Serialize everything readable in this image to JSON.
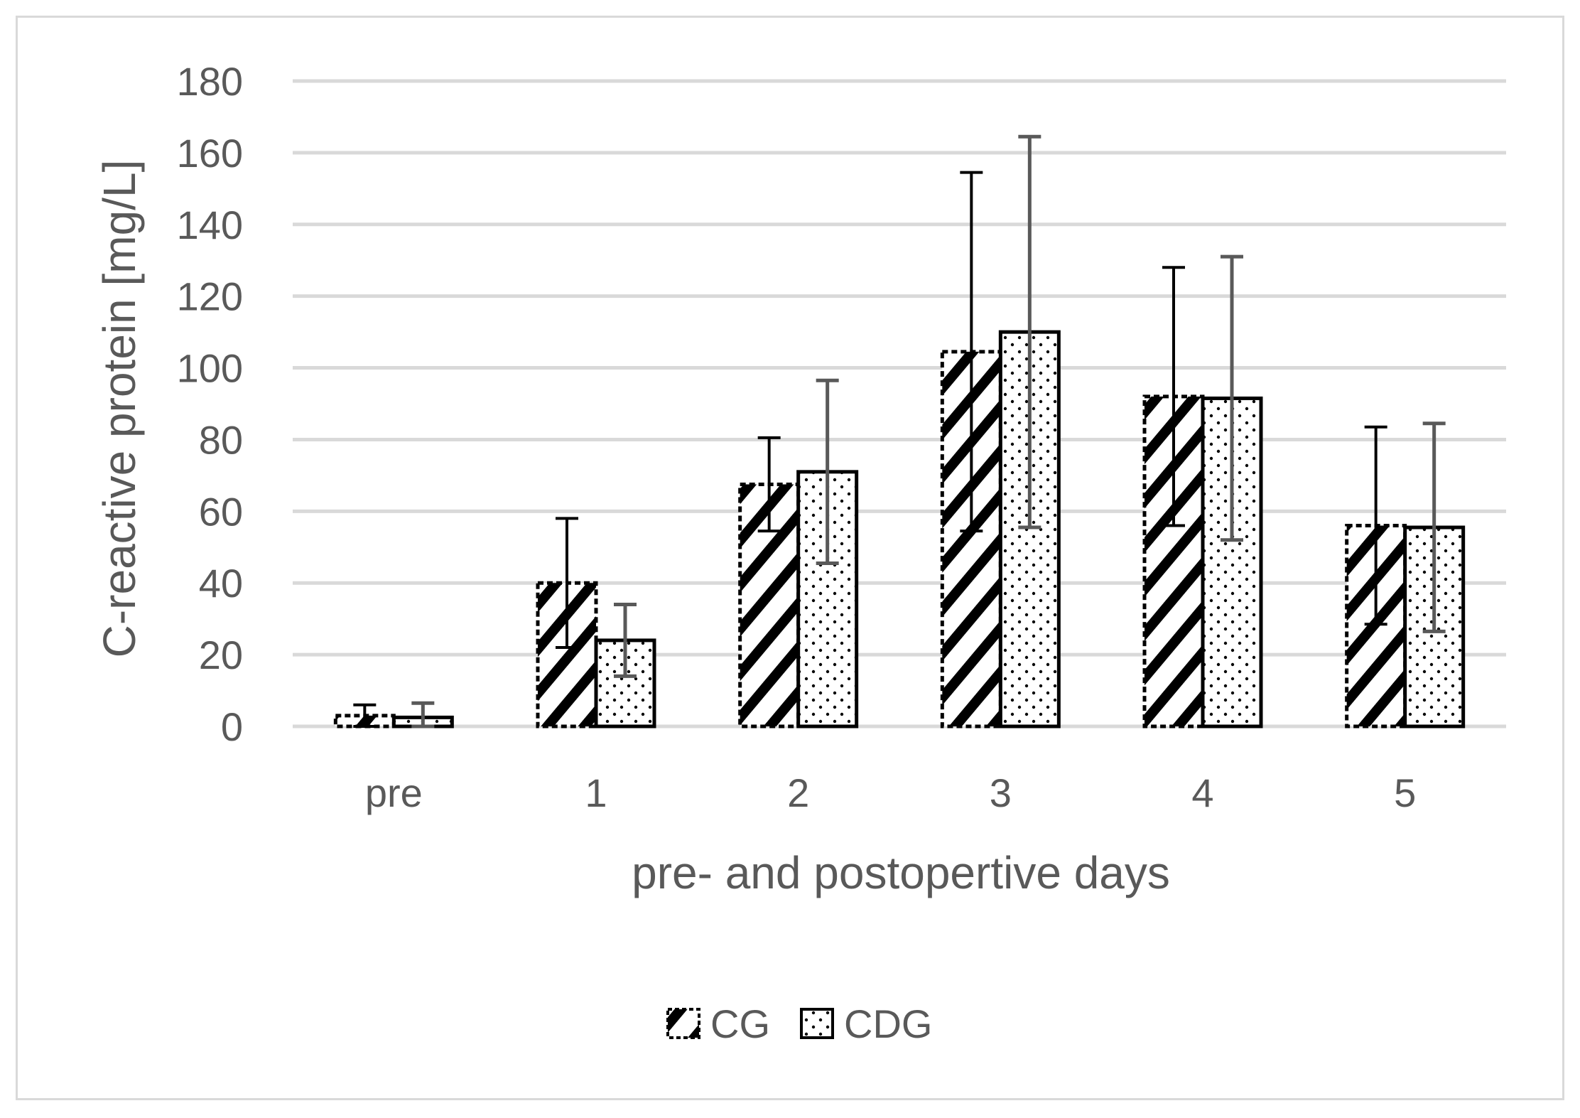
{
  "chart_data": {
    "type": "bar",
    "title": "",
    "xlabel": "pre- and postopertive days",
    "ylabel": "C-reactive protein [mg/L]",
    "categories": [
      "pre",
      "1",
      "2",
      "3",
      "4",
      "5"
    ],
    "ylim": [
      0,
      180
    ],
    "yticks": [
      0,
      20,
      40,
      60,
      80,
      100,
      120,
      140,
      160,
      180
    ],
    "grid": true,
    "legend_position": "bottom",
    "series": [
      {
        "name": "CG",
        "pattern": "diagonal-hatch",
        "values": [
          3,
          40,
          67.5,
          104.5,
          92,
          56
        ],
        "error": [
          3,
          18,
          13,
          50,
          36,
          27.5
        ]
      },
      {
        "name": "CDG",
        "pattern": "dotted",
        "values": [
          2.5,
          24,
          71,
          110,
          91.5,
          55.5
        ],
        "error": [
          4,
          10,
          25.5,
          54.5,
          39.5,
          29
        ]
      }
    ],
    "colors": {
      "grid": "#d9d9d9",
      "bar_outline": "#000000",
      "hatch": "#000000",
      "dot": "#000000",
      "error_cg": "#000000",
      "error_cdg": "#595959",
      "text": "#595959"
    }
  }
}
